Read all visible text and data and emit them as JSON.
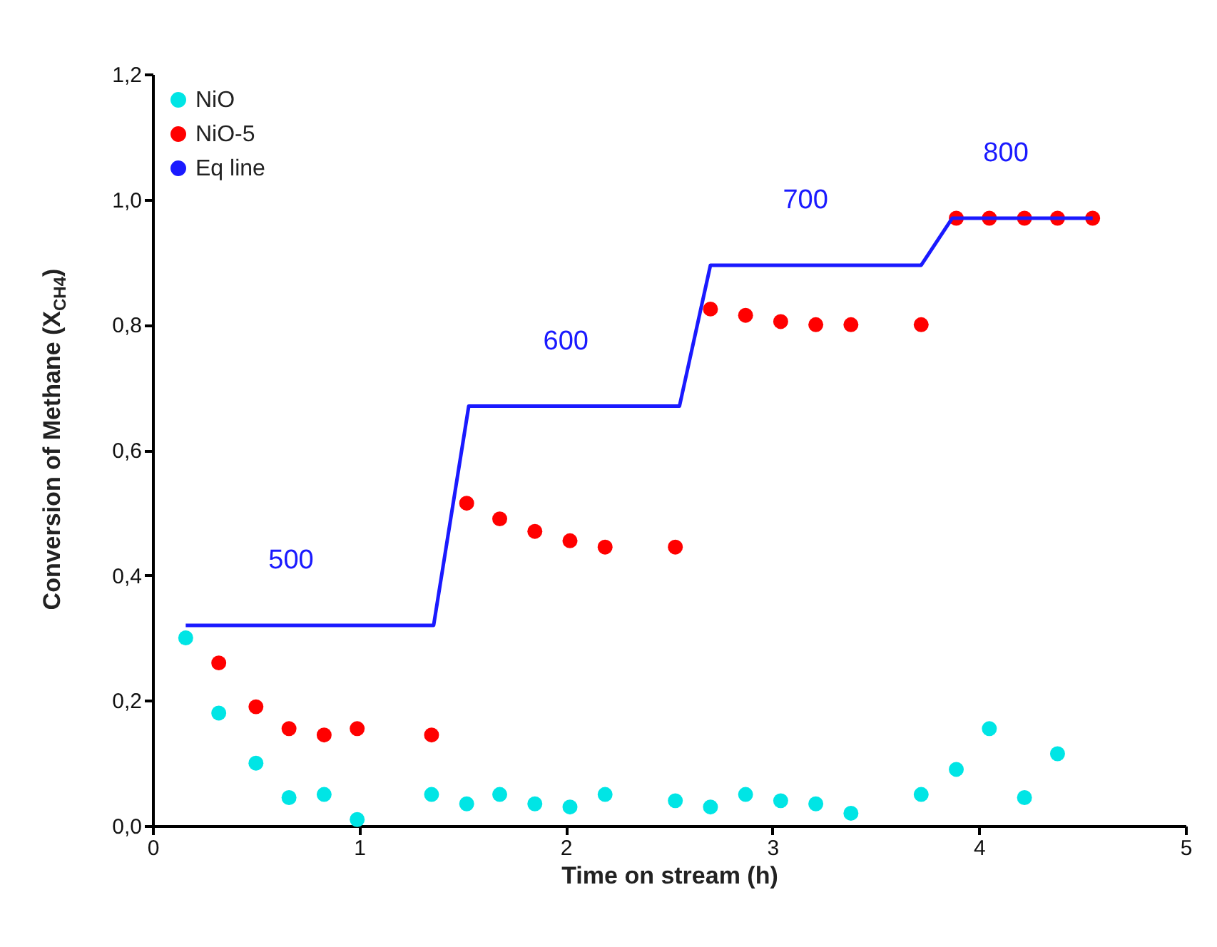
{
  "chart_data": {
    "type": "scatter",
    "xlabel": "Time on stream (h)",
    "ylabel": "Conversion of Methane (X$_{CH4}$)",
    "xlim": [
      0,
      5
    ],
    "xticks": [
      0,
      1,
      2,
      3,
      4,
      5
    ],
    "ylim": [
      0,
      1.2
    ],
    "yticks": [
      {
        "value": 0,
        "label": "0,0"
      },
      {
        "value": 0.2,
        "label": "0,2"
      },
      {
        "value": 0.4,
        "label": "0,4"
      },
      {
        "value": 0.6,
        "label": "0,6"
      },
      {
        "value": 0.8,
        "label": "0,8"
      },
      {
        "value": 1.0,
        "label": "1,0"
      },
      {
        "value": 1.2,
        "label": "1,2"
      }
    ],
    "legend": "top left",
    "marker": "circle",
    "grid": false,
    "series": [
      {
        "name": "NiO",
        "color": "#00e5e5",
        "x": [
          0.16,
          0.32,
          0.5,
          0.66,
          0.83,
          0.99,
          1.35,
          1.52,
          1.68,
          1.85,
          2.02,
          2.19,
          2.53,
          2.7,
          2.87,
          3.04,
          3.21,
          3.38,
          3.72,
          3.89,
          4.05,
          4.22,
          4.38
        ],
        "values": [
          0.3,
          0.18,
          0.1,
          0.045,
          0.05,
          0.01,
          0.05,
          0.035,
          0.05,
          0.035,
          0.03,
          0.05,
          0.04,
          0.03,
          0.05,
          0.04,
          0.035,
          0.02,
          0.05,
          0.09,
          0.155,
          0.045,
          0.115
        ]
      },
      {
        "name": "NiO-5",
        "color": "#ff0000",
        "x": [
          0.32,
          0.5,
          0.66,
          0.83,
          0.99,
          1.35,
          1.52,
          1.68,
          1.85,
          2.02,
          2.19,
          2.53,
          2.7,
          2.87,
          3.04,
          3.21,
          3.38,
          3.72,
          3.89,
          4.05,
          4.22,
          4.38,
          4.55
        ],
        "values": [
          0.26,
          0.19,
          0.155,
          0.145,
          0.155,
          0.145,
          0.515,
          0.49,
          0.47,
          0.455,
          0.445,
          0.445,
          0.825,
          0.815,
          0.805,
          0.8,
          0.8,
          0.8,
          0.97,
          0.97,
          0.97,
          0.97,
          0.97
        ]
      },
      {
        "name": "Eq line",
        "type": "line",
        "marker": "none",
        "color": "#1a1aff",
        "x": [
          0.16,
          1.36,
          1.53,
          2.55,
          2.7,
          3.72,
          3.87,
          4.55
        ],
        "values": [
          0.32,
          0.32,
          0.67,
          0.67,
          0.895,
          0.895,
          0.97,
          0.97
        ]
      }
    ],
    "annotations": [
      {
        "text": "500",
        "x": 0.67,
        "y": 0.32
      },
      {
        "text": "600",
        "x": 2.0,
        "y": 0.67
      },
      {
        "text": "700",
        "x": 3.16,
        "y": 0.895
      },
      {
        "text": "800",
        "x": 4.13,
        "y": 0.97
      }
    ]
  }
}
